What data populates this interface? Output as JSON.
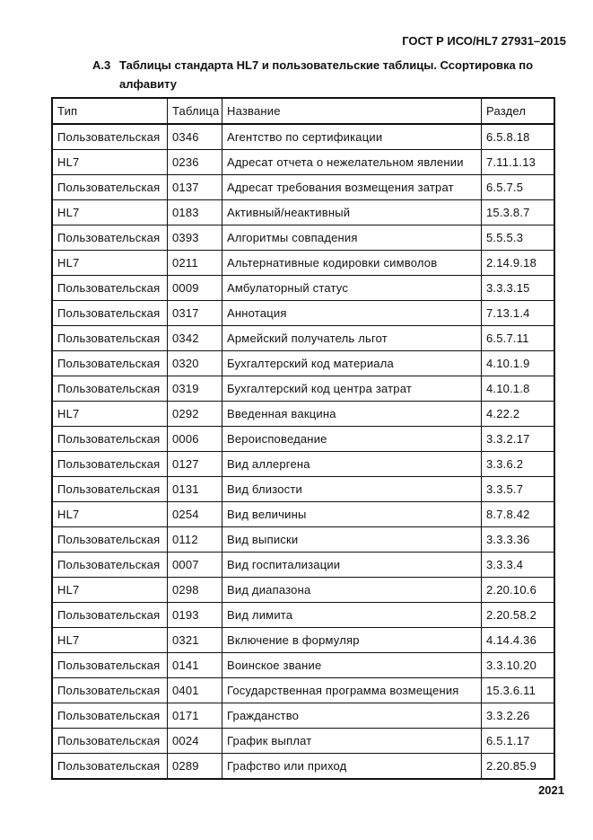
{
  "header": {
    "standard": "ГОСТ Р ИСО/HL7 27931–2015"
  },
  "section": {
    "number": "А.3",
    "title": "Таблицы стандарта HL7 и пользовательские таблицы. Ссортировка по алфавиту"
  },
  "table": {
    "columns": [
      "Тип",
      "Таблица",
      "Название",
      "Раздел"
    ],
    "rows": [
      [
        "Пользовательская",
        "0346",
        "Агентство по сертификации",
        "6.5.8.18"
      ],
      [
        "HL7",
        "0236",
        "Адресат отчета о нежелательном явлении",
        "7.11.1.13"
      ],
      [
        "Пользовательская",
        "0137",
        "Адресат требования возмещения затрат",
        "6.5.7.5"
      ],
      [
        "HL7",
        "0183",
        "Активный/неактивный",
        "15.3.8.7"
      ],
      [
        "Пользовательская",
        "0393",
        "Алгоритмы совпадения",
        "5.5.5.3"
      ],
      [
        "HL7",
        "0211",
        "Альтернативные кодировки символов",
        "2.14.9.18"
      ],
      [
        "Пользовательская",
        "0009",
        "Амбулаторный статус",
        "3.3.3.15"
      ],
      [
        "Пользовательская",
        "0317",
        "Аннотация",
        "7.13.1.4"
      ],
      [
        "Пользовательская",
        "0342",
        "Армейский получатель льгот",
        "6.5.7.11"
      ],
      [
        "Пользовательская",
        "0320",
        "Бухгалтерский код материала",
        "4.10.1.9"
      ],
      [
        "Пользовательская",
        "0319",
        "Бухгалтерский код центра затрат",
        "4.10.1.8"
      ],
      [
        "HL7",
        "0292",
        "Введенная вакцина",
        "4.22.2"
      ],
      [
        "Пользовательская",
        "0006",
        "Вероисповедание",
        "3.3.2.17"
      ],
      [
        "Пользовательская",
        "0127",
        "Вид аллергена",
        "3.3.6.2"
      ],
      [
        "Пользовательская",
        "0131",
        "Вид близости",
        "3.3.5.7"
      ],
      [
        "HL7",
        "0254",
        "Вид величины",
        "8.7.8.42"
      ],
      [
        "Пользовательская",
        "0112",
        "Вид выписки",
        "3.3.3.36"
      ],
      [
        "Пользовательская",
        "0007",
        "Вид госпитализации",
        "3.3.3.4"
      ],
      [
        "HL7",
        "0298",
        "Вид диапазона",
        "2.20.10.6"
      ],
      [
        "Пользовательская",
        "0193",
        "Вид лимита",
        "2.20.58.2"
      ],
      [
        "HL7",
        "0321",
        "Включение в формуляр",
        "4.14.4.36"
      ],
      [
        "Пользовательская",
        "0141",
        "Воинское звание",
        "3.3.10.20"
      ],
      [
        "Пользовательская",
        "0401",
        "Государственная программа возмещения",
        "15.3.6.11"
      ],
      [
        "Пользовательская",
        "0171",
        "Гражданство",
        "3.3.2.26"
      ],
      [
        "Пользовательская",
        "0024",
        "График выплат",
        "6.5.1.17"
      ],
      [
        "Пользовательская",
        "0289",
        "Графство или приход",
        "2.20.85.9"
      ]
    ]
  },
  "footer": {
    "page": "2021"
  }
}
